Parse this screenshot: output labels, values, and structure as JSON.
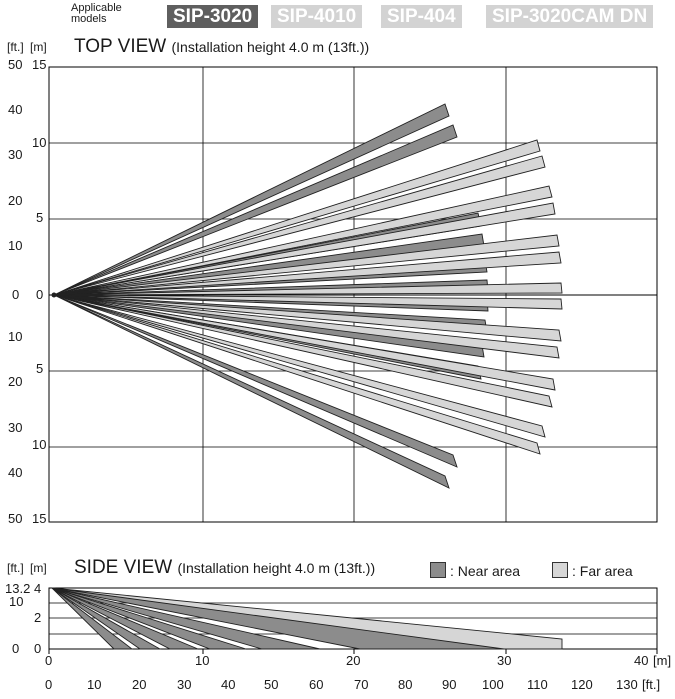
{
  "header": {
    "applicable_line1": "Applicable",
    "applicable_line2": "models",
    "models": [
      {
        "label": "SIP-3020",
        "active": true
      },
      {
        "label": "SIP-4010",
        "active": false
      },
      {
        "label": "SIP-404",
        "active": false
      },
      {
        "label": "SIP-3020CAM DN",
        "active": false
      }
    ]
  },
  "top_view": {
    "title": "TOP VIEW",
    "subtitle": "(Installation height 4.0 m (13ft.))",
    "unit_ft": "[ft.]",
    "unit_m": "[m]",
    "y_labels_ft": [
      "50",
      "40",
      "30",
      "20",
      "10",
      "0",
      "10",
      "20",
      "30",
      "40",
      "50"
    ],
    "y_labels_m": [
      "15",
      "10",
      "5",
      "0",
      "5",
      "10",
      "15"
    ]
  },
  "side_view": {
    "title": "SIDE VIEW",
    "subtitle": "(Installation height 4.0 m (13ft.))",
    "legend_near": ": Near area",
    "legend_far": ": Far area",
    "unit_ft": "[ft.]",
    "unit_m": "[m]",
    "y_label_ft_top": "13.2",
    "y_label_ft_mid": "10",
    "y_label_ft_zero": "0",
    "y_labels_m": [
      "4",
      "2",
      "0"
    ],
    "x_labels_m": [
      "0",
      "10",
      "20",
      "30",
      "40"
    ],
    "x_unit_m": "[m]",
    "x_labels_ft": [
      "0",
      "10",
      "20",
      "30",
      "40",
      "50",
      "60",
      "70",
      "80",
      "90",
      "100",
      "110",
      "120",
      "130"
    ],
    "x_unit_ft": "[ft.]"
  },
  "colors": {
    "near": "#8c8c8c",
    "far": "#d6d6d6",
    "outline": "#222222",
    "grid": "#000000"
  }
}
